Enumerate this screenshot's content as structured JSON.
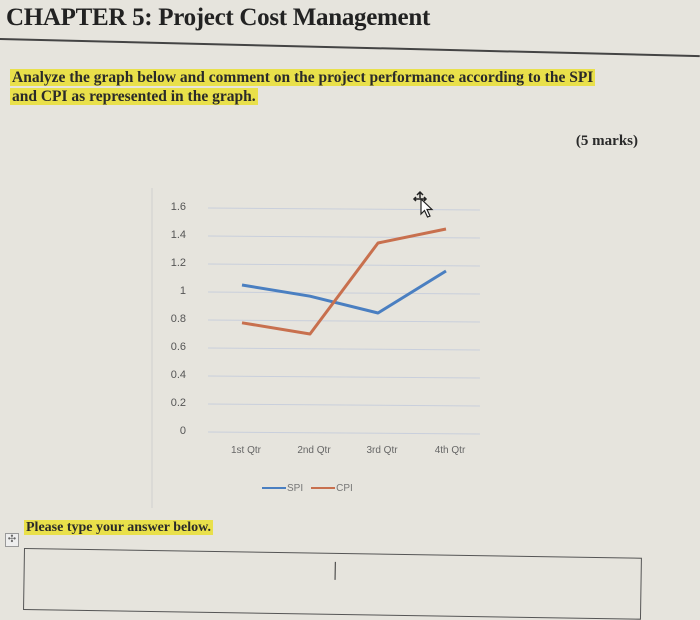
{
  "document": {
    "title": "CHAPTER 5: Project Cost Management",
    "prompt_line1": "Analyze the graph below and comment on the project performance according to the SPI",
    "prompt_line2": "and CPI as represented in the graph.",
    "marks": "(5 marks)",
    "answer_label": "Please type your answer below.",
    "answer_value": ""
  },
  "colors": {
    "spi": "#4a7fc1",
    "cpi": "#c8704e",
    "highlight": "#e9e04a",
    "gridline": "#c9cfdc"
  },
  "icons": {
    "move_cursor": "move-arrow-cursor-icon",
    "table_move_handle": "table-move-handle-icon"
  },
  "chart_data": {
    "type": "line",
    "title": "",
    "xlabel": "",
    "ylabel": "",
    "categories": [
      "1st Qtr",
      "2nd Qtr",
      "3rd Qtr",
      "4th Qtr"
    ],
    "series": [
      {
        "name": "SPI",
        "color": "#4a7fc1",
        "values": [
          1.05,
          0.97,
          0.85,
          1.15
        ]
      },
      {
        "name": "CPI",
        "color": "#c8704e",
        "values": [
          0.78,
          0.7,
          1.35,
          1.45
        ]
      }
    ],
    "yticks": [
      "1.6",
      "1.4",
      "1.2",
      "1",
      "0.8",
      "0.6",
      "0.4",
      "0.2",
      "0"
    ],
    "ylim": [
      0,
      1.6
    ],
    "grid": true,
    "legend_position": "bottom"
  }
}
